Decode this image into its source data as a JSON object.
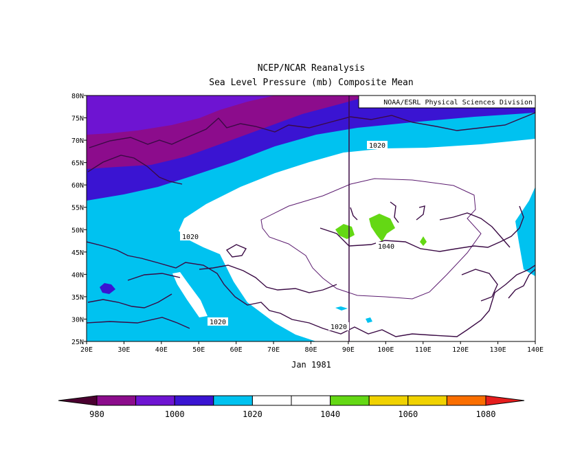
{
  "title": "NCEP/NCAR Reanalysis",
  "subtitle": "Sea Level Pressure (mb) Composite Mean",
  "credit": "NOAA/ESRL Physical Sciences Division",
  "date_label": "Jan 1981",
  "chart_data": {
    "type": "heatmap",
    "variable": "Sea Level Pressure (mb)",
    "lon_range": [
      20,
      140
    ],
    "lat_range": [
      25,
      80
    ],
    "x_ticks": [
      "20E",
      "30E",
      "40E",
      "50E",
      "60E",
      "70E",
      "80E",
      "90E",
      "100E",
      "110E",
      "120E",
      "130E",
      "140E"
    ],
    "y_ticks": [
      "80N",
      "75N",
      "70N",
      "65N",
      "60N",
      "55N",
      "50N",
      "45N",
      "40N",
      "35N",
      "30N",
      "25N"
    ],
    "contour_labels": [
      "1020",
      "1020",
      "1020",
      "1040",
      "1020"
    ],
    "colorbar": {
      "levels": [
        980,
        990,
        1000,
        1010,
        1020,
        1030,
        1040,
        1050,
        1060,
        1070,
        1080
      ],
      "labels": [
        "980",
        "1000",
        "1020",
        "1040",
        "1060",
        "1080"
      ],
      "colors": [
        "#4b0030",
        "#8c0c8c",
        "#6e14d2",
        "#3a14d2",
        "#00c2f0",
        "#ffffff",
        "#ffffff",
        "#64d814",
        "#f0d200",
        "#f0d200",
        "#fa6e00",
        "#e61e1e"
      ]
    }
  }
}
